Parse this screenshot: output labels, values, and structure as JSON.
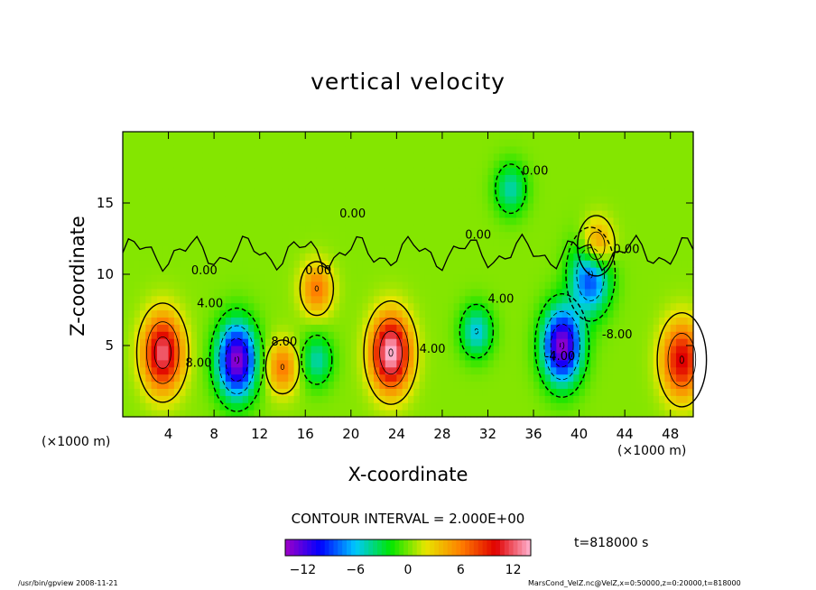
{
  "figure": {
    "title": "vertical velocity",
    "xlabel": "X-coordinate",
    "ylabel": "Z-coordinate",
    "x_unit_left": "(×1000 m)",
    "x_unit_right": "(×1000 m)",
    "contour_interval_text": "CONTOUR INTERVAL = 2.000E+00",
    "time_label": "t=818000 s",
    "footer_left": "/usr/bin/gpview  2008-11-21",
    "footer_right": "MarsCond_VelZ.nc@VelZ,x=0:50000,z=0:20000,t=818000"
  },
  "chart_data": {
    "type": "heatmap",
    "title": "vertical velocity",
    "xlabel": "X-coordinate",
    "ylabel": "Z-coordinate",
    "x_unit": "×1000 m",
    "xlim": [
      0,
      50
    ],
    "ylim": [
      0,
      20
    ],
    "x_ticks": [
      "4",
      "8",
      "12",
      "16",
      "20",
      "24",
      "28",
      "32",
      "36",
      "40",
      "44",
      "48"
    ],
    "x_tick_values": [
      4,
      8,
      12,
      16,
      20,
      24,
      28,
      32,
      36,
      40,
      44,
      48
    ],
    "y_ticks": [
      "5",
      "10",
      "15"
    ],
    "y_tick_values": [
      5,
      10,
      15
    ],
    "contour_interval": 2.0,
    "contour_labels": [
      "0.00",
      "0.00",
      "0.00",
      "0.00",
      "0.00",
      "4.00",
      "4.00",
      "4.00",
      "8.00",
      "0.00",
      "-8.00",
      "-4.00",
      "8.00"
    ],
    "colorbar": {
      "min": -14,
      "max": 14,
      "ticks": [
        "−12",
        "−6",
        "0",
        "6",
        "12"
      ],
      "tick_values": [
        -12,
        -6,
        0,
        6,
        12
      ],
      "colors": [
        "#a000c8",
        "#0000ff",
        "#00c8ff",
        "#00e600",
        "#e6e600",
        "#ff8000",
        "#e00000",
        "#ffb4d2"
      ]
    },
    "time": "t=818000 s",
    "features": [
      {
        "kind": "updraft",
        "x": 3.5,
        "z": 4.5,
        "peak": 12
      },
      {
        "kind": "downdraft",
        "x": 10,
        "z": 4,
        "peak": -14
      },
      {
        "kind": "updraft",
        "x": 14,
        "z": 3.5,
        "peak": 6
      },
      {
        "kind": "downdraft",
        "x": 17,
        "z": 4,
        "peak": -5
      },
      {
        "kind": "updraft",
        "x": 17,
        "z": 9,
        "peak": 6
      },
      {
        "kind": "updraft",
        "x": 23.5,
        "z": 4.5,
        "peak": 14
      },
      {
        "kind": "downdraft",
        "x": 31,
        "z": 6,
        "peak": -6
      },
      {
        "kind": "downdraft",
        "x": 34,
        "z": 16,
        "peak": -5
      },
      {
        "kind": "downdraft",
        "x": 38.5,
        "z": 5,
        "peak": -14
      },
      {
        "kind": "downdraft",
        "x": 41,
        "z": 10,
        "peak": -10
      },
      {
        "kind": "updraft",
        "x": 49,
        "z": 4,
        "peak": 10
      },
      {
        "kind": "updraft",
        "x": 41.5,
        "z": 12,
        "peak": 8
      }
    ]
  }
}
